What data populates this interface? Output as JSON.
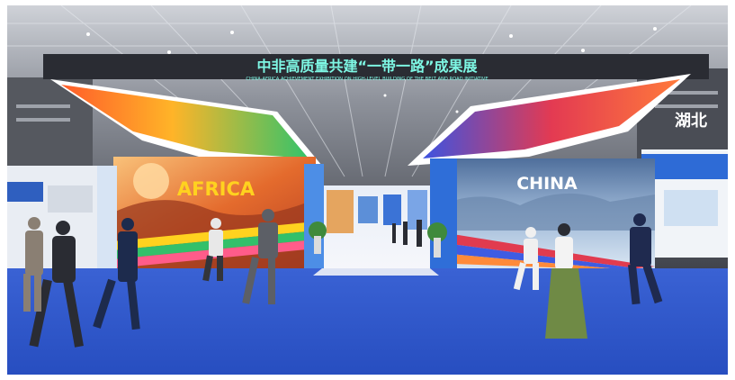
{
  "banner": {
    "title_cn": "中非高质量共建“一带一路”成果展",
    "title_en": "CHINA-AFRICA ACHIEVEMENT EXHIBITION ON HIGH-LEVEL BUILDING OF THE BELT AND ROAD INITIATIVE"
  },
  "booths": {
    "left_label": "AFRICA",
    "right_label": "CHINA",
    "far_right_sign": "湖北"
  },
  "colors": {
    "carpet": "#2d57c9",
    "banner_text": "#7ef7e4",
    "africa_text": "#ffd21f",
    "china_text": "#ffffff"
  }
}
